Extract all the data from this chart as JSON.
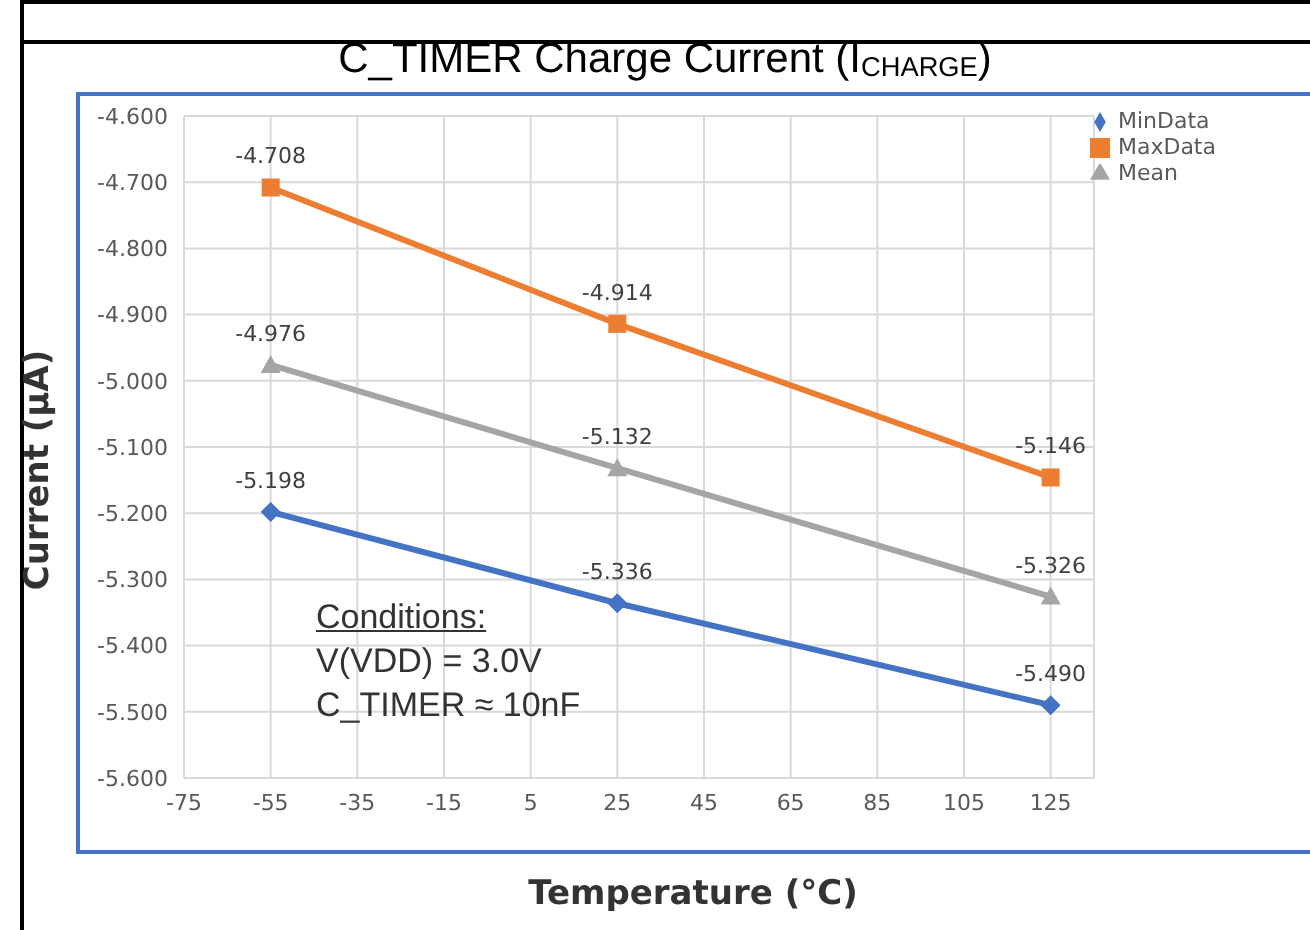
{
  "chart_data": {
    "type": "line",
    "title": "C_TIMER Charge Current (I$_{CHARGE}$)",
    "xlabel": "Temperature (°C)",
    "ylabel": "Current (µA)",
    "x": [
      -55,
      25,
      125
    ],
    "series": [
      {
        "name": "MinData",
        "color": "#4472c4",
        "marker": "diamond",
        "values": [
          -5.198,
          -5.336,
          -5.49
        ],
        "value_labels": [
          "-5.198",
          "-5.336",
          "-5.490"
        ]
      },
      {
        "name": "MaxData",
        "color": "#ed7d31",
        "marker": "square",
        "values": [
          -4.708,
          -4.914,
          -5.146
        ],
        "value_labels": [
          "-4.708",
          "-4.914",
          "-5.146"
        ]
      },
      {
        "name": "Mean",
        "color": "#a5a5a5",
        "marker": "triangle",
        "values": [
          -4.976,
          -5.132,
          -5.326
        ],
        "value_labels": [
          "-4.976",
          "-5.132",
          "-5.326"
        ]
      }
    ],
    "xlim": [
      -75,
      135
    ],
    "xticks": [
      -75,
      -55,
      -35,
      -15,
      5,
      25,
      45,
      65,
      85,
      105,
      125
    ],
    "ylim": [
      -5.6,
      -4.6
    ],
    "yticks": [
      {
        "value": -4.6,
        "label": "-4.600"
      },
      {
        "value": -4.7,
        "label": "-4.700"
      },
      {
        "value": -4.8,
        "label": "-4.800"
      },
      {
        "value": -4.9,
        "label": "-4.900"
      },
      {
        "value": -5.0,
        "label": "-5.000"
      },
      {
        "value": -5.1,
        "label": "-5.100"
      },
      {
        "value": -5.2,
        "label": "-5.200"
      },
      {
        "value": -5.3,
        "label": "-5.300"
      },
      {
        "value": -5.4,
        "label": "-5.400"
      },
      {
        "value": -5.5,
        "label": "-5.500"
      },
      {
        "value": -5.6,
        "label": "-5.600"
      }
    ],
    "grid": true,
    "legend": "top right",
    "line_style": "solid",
    "annotations": [
      "Conditions:",
      "V(VDD) = 3.0V",
      "C_TIMER ≈ 10nF"
    ]
  }
}
